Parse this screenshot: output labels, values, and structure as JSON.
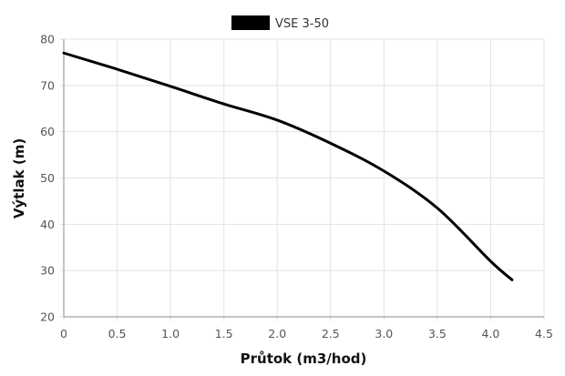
{
  "chart_data": {
    "type": "line",
    "xlabel": "Průtok (m3/hod)",
    "ylabel": "Výtlak (m)",
    "xlim": [
      0,
      4.5
    ],
    "ylim": [
      20,
      80
    ],
    "x_ticks": [
      "0",
      "0.5",
      "1.0",
      "1.5",
      "2.0",
      "2.5",
      "3.0",
      "3.5",
      "4.0",
      "4.5"
    ],
    "y_ticks": [
      "20",
      "30",
      "40",
      "50",
      "60",
      "70",
      "80"
    ],
    "grid": true,
    "legend_position": "top-center",
    "series": [
      {
        "name": "VSE 3-50",
        "color": "#000000",
        "x": [
          0,
          0.5,
          1.0,
          1.5,
          2.0,
          2.5,
          3.0,
          3.5,
          4.0,
          4.2
        ],
        "y": [
          77,
          73.5,
          69.8,
          66,
          62.5,
          57.5,
          51.5,
          43.5,
          32,
          28
        ]
      }
    ]
  }
}
